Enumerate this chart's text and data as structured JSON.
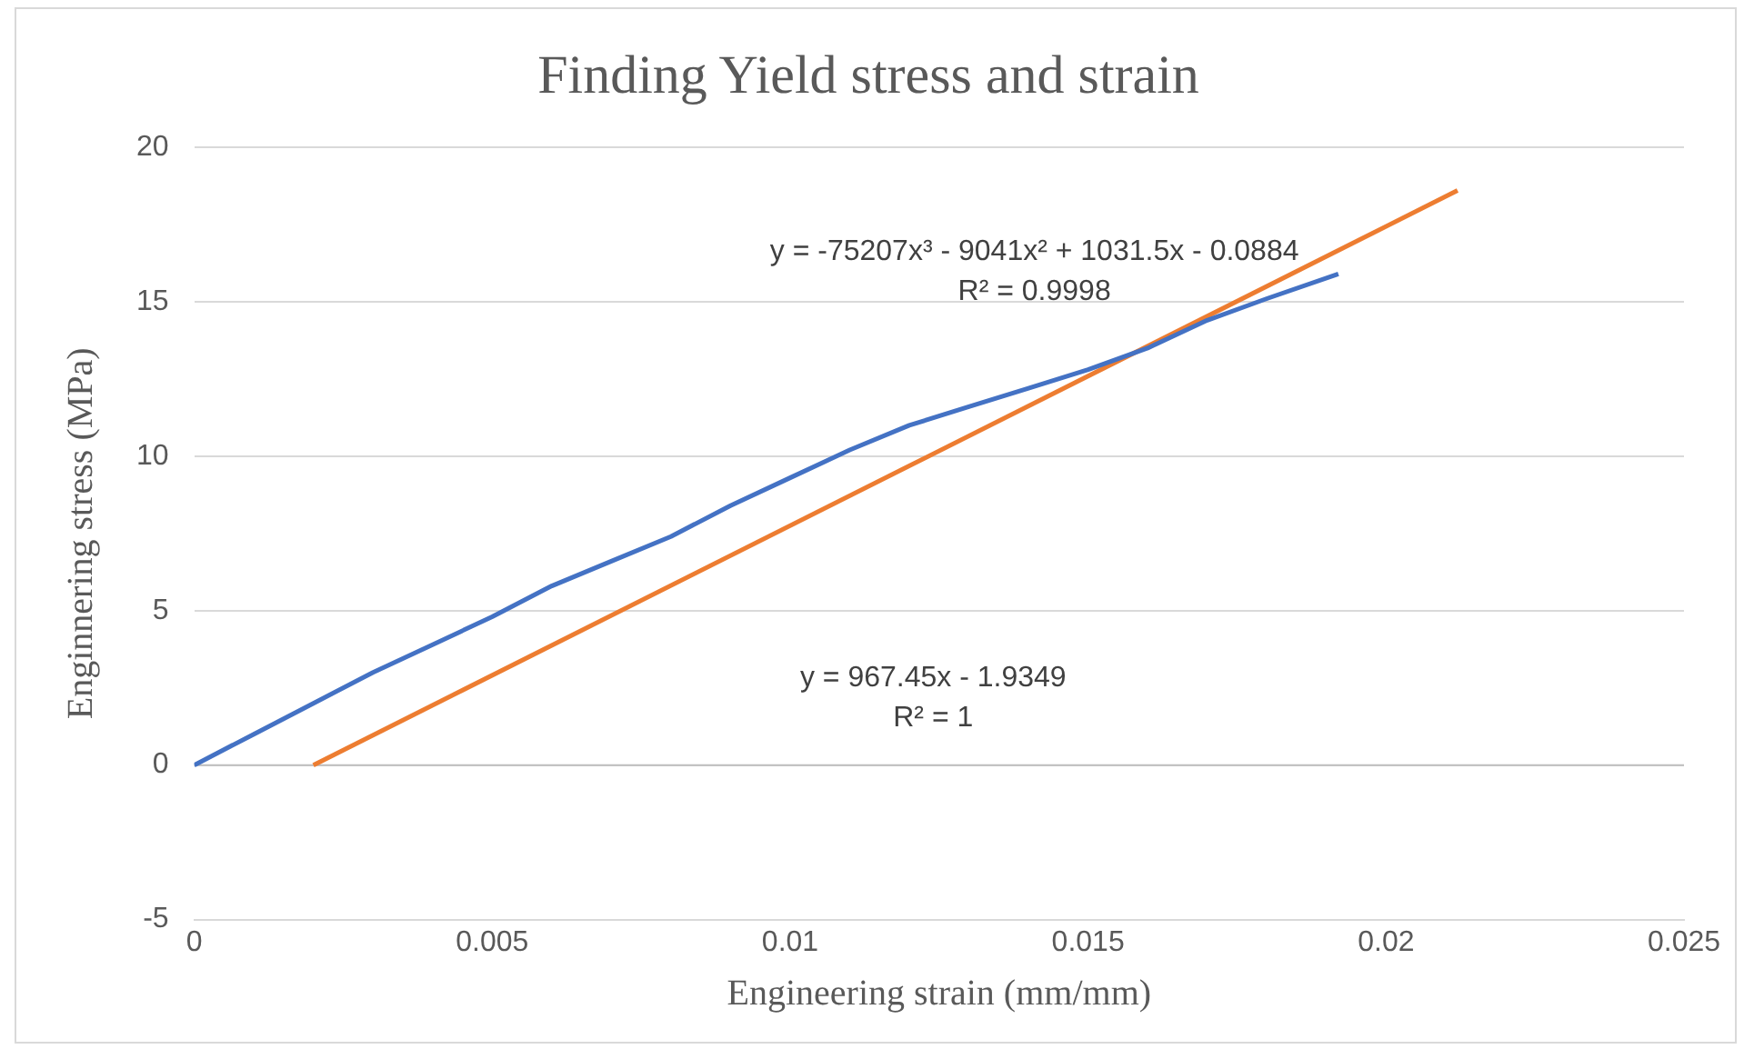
{
  "chart_data": {
    "type": "line",
    "title": "Finding Yield stress and strain",
    "xlabel": "Engineering strain (mm/mm)",
    "ylabel": "Enginnering stress (MPa)",
    "series": [
      {
        "color": "#4472c4",
        "x": [
          0,
          0.001,
          0.002,
          0.003,
          0.004,
          0.005,
          0.006,
          0.007,
          0.008,
          0.009,
          0.01,
          0.011,
          0.012,
          0.013,
          0.014,
          0.015,
          0.016,
          0.017,
          0.018,
          0.0192
        ],
        "values": [
          0,
          1.0,
          2.0,
          3.0,
          3.9,
          4.8,
          5.8,
          6.6,
          7.4,
          8.4,
          9.3,
          10.2,
          11.0,
          11.6,
          12.2,
          12.8,
          13.5,
          14.4,
          15.1,
          15.9
        ]
      },
      {
        "color": "#ed7d31",
        "x": [
          0.002,
          0.0212
        ],
        "values": [
          0,
          18.6
        ]
      }
    ],
    "xlim": [
      0,
      0.025
    ],
    "xticks": [
      0,
      0.005,
      0.01,
      0.015,
      0.02,
      0.025
    ],
    "ylim": [
      -5,
      20
    ],
    "yticks": [
      -5,
      0,
      5,
      10,
      15,
      20
    ],
    "annotations": [
      "y = -75207x³ - 9041x² + 1031.5x - 0.0884\nR² = 0.9998",
      "y = 967.45x - 1.9349\nR² = 1"
    ],
    "grid": "y",
    "legend": false,
    "marker": "none",
    "line_style": "solid"
  }
}
